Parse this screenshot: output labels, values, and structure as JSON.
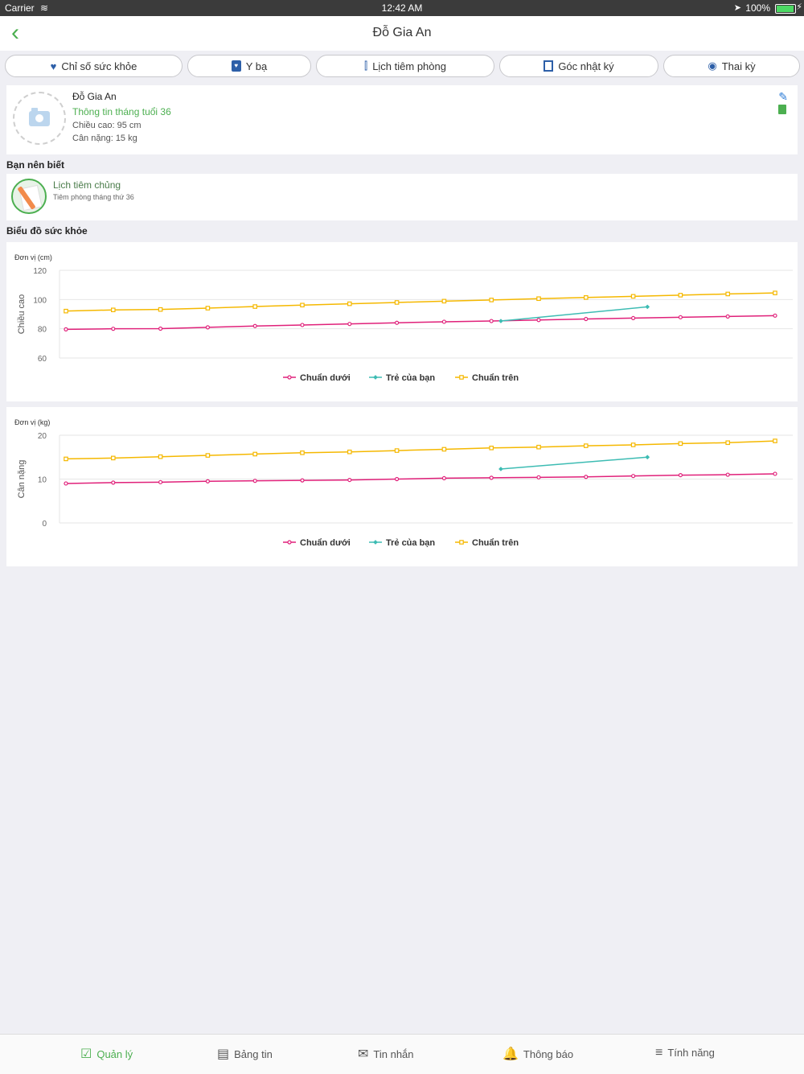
{
  "status": {
    "carrier": "Carrier",
    "time": "12:42 AM",
    "battery": "100%"
  },
  "nav": {
    "title": "Đỗ Gia An"
  },
  "tabs": [
    {
      "label": "Chỉ số sức khỏe",
      "icon": "heart-icon"
    },
    {
      "label": "Y bạ",
      "icon": "medical-book-icon"
    },
    {
      "label": "Lịch tiêm phòng",
      "icon": "syringe-icon"
    },
    {
      "label": "Góc nhật ký",
      "icon": "diary-icon"
    },
    {
      "label": "Thai kỳ",
      "icon": "pregnancy-icon"
    }
  ],
  "profile": {
    "name": "Đỗ Gia An",
    "age_info": "Thông tin tháng tuổi 36",
    "height": "Chiều cao: 95 cm",
    "weight": "Cân nặng: 15 kg"
  },
  "section_know": "Bạn nên biết",
  "know_item": {
    "title": "Lịch tiêm chủng",
    "subtitle": "Tiêm phòng tháng thứ 36"
  },
  "section_chart": "Biểu đồ sức khỏe",
  "colors": {
    "green": "#4caf50",
    "lower": "#e0217a",
    "child": "#3dbcb3",
    "upper": "#f5b800"
  },
  "chart_data": [
    {
      "type": "line",
      "unit": "Đơn vị (cm)",
      "ylabel": "Chiều cao",
      "ylim": [
        60,
        120
      ],
      "yticks": [
        60,
        80,
        100,
        120
      ],
      "series": [
        {
          "name": "Chuẩn dưới",
          "x": [
            0,
            1,
            2,
            3,
            4,
            5,
            6,
            7,
            8,
            9,
            10,
            11,
            12,
            13,
            14,
            15
          ],
          "values": [
            79.6,
            80.0,
            80.1,
            81.0,
            81.9,
            82.6,
            83.3,
            84.1,
            84.8,
            85.3,
            86.0,
            86.7,
            87.3,
            87.9,
            88.4,
            89.0
          ]
        },
        {
          "name": "Trẻ của bạn",
          "x": [
            9.2,
            12.3
          ],
          "values": [
            85.3,
            95.0
          ]
        },
        {
          "name": "Chuẩn trên",
          "x": [
            0,
            1,
            2,
            3,
            4,
            5,
            6,
            7,
            8,
            9,
            10,
            11,
            12,
            13,
            14,
            15
          ],
          "values": [
            92.1,
            92.9,
            93.2,
            94.1,
            95.2,
            96.2,
            97.1,
            98.0,
            98.9,
            99.7,
            100.6,
            101.4,
            102.2,
            103.0,
            103.8,
            104.5
          ]
        }
      ],
      "legend": [
        "Chuẩn dưới",
        "Trẻ của bạn",
        "Chuẩn trên"
      ]
    },
    {
      "type": "line",
      "unit": "Đơn vị (kg)",
      "ylabel": "Cân nặng",
      "ylim": [
        0,
        20
      ],
      "yticks": [
        0,
        10,
        20
      ],
      "series": [
        {
          "name": "Chuẩn dưới",
          "x": [
            0,
            1,
            2,
            3,
            4,
            5,
            6,
            7,
            8,
            9,
            10,
            11,
            12,
            13,
            14,
            15
          ],
          "values": [
            9.0,
            9.2,
            9.3,
            9.5,
            9.6,
            9.7,
            9.8,
            10.0,
            10.2,
            10.3,
            10.4,
            10.5,
            10.7,
            10.9,
            11.0,
            11.2
          ]
        },
        {
          "name": "Trẻ của bạn",
          "x": [
            9.2,
            12.3
          ],
          "values": [
            12.3,
            15.0
          ]
        },
        {
          "name": "Chuẩn trên",
          "x": [
            0,
            1,
            2,
            3,
            4,
            5,
            6,
            7,
            8,
            9,
            10,
            11,
            12,
            13,
            14,
            15
          ],
          "values": [
            14.6,
            14.8,
            15.1,
            15.4,
            15.7,
            16.0,
            16.2,
            16.5,
            16.8,
            17.1,
            17.3,
            17.6,
            17.8,
            18.1,
            18.3,
            18.7
          ]
        }
      ],
      "legend": [
        "Chuẩn dưới",
        "Trẻ của bạn",
        "Chuẩn trên"
      ]
    }
  ],
  "bottom_tabs": [
    {
      "label": "Quản lý",
      "icon": "checklist-icon",
      "active": true
    },
    {
      "label": "Bảng tin",
      "icon": "newsfeed-icon",
      "active": false
    },
    {
      "label": "Tin nhắn",
      "icon": "message-icon",
      "active": false
    },
    {
      "label": "Thông báo",
      "icon": "bell-icon",
      "active": false
    },
    {
      "label": "Tính năng",
      "icon": "menu-icon",
      "active": false
    }
  ]
}
